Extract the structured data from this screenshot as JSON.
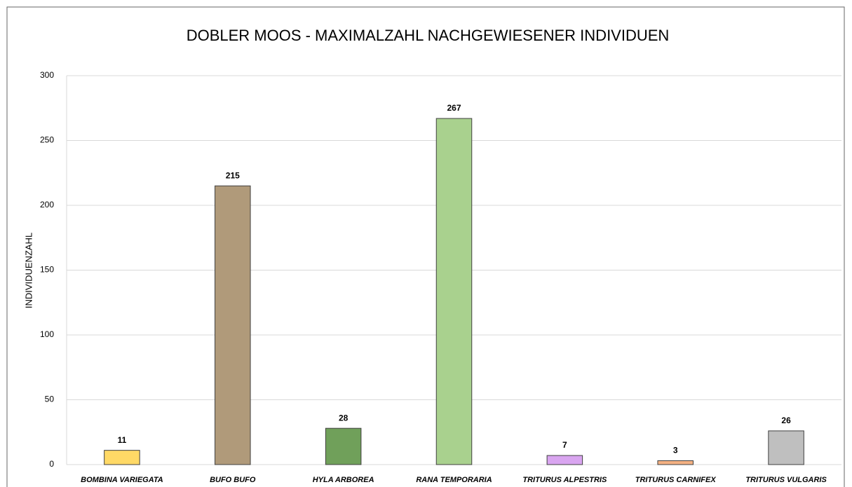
{
  "chart_data": {
    "type": "bar",
    "title": "DOBLER MOOS - MAXIMALZAHL NACHGEWIESENER INDIVIDUEN",
    "y_label": "INDIVIDUENZAHL",
    "categories": [
      "BOMBINA VARIEGATA",
      "BUFO BUFO",
      "HYLA ARBOREA",
      "RANA TEMPORARIA",
      "TRITURUS ALPESTRIS",
      "TRITURUS CARNIFEX",
      "TRITURUS VULGARIS"
    ],
    "values": [
      11,
      215,
      28,
      267,
      7,
      3,
      26
    ],
    "colors": [
      "#ffd966",
      "#b09a7a",
      "#70a05a",
      "#a9d18e",
      "#d9a5f0",
      "#f4b183",
      "#bfbfbf"
    ],
    "ylim": [
      0,
      300
    ],
    "yticks": [
      0,
      50,
      100,
      150,
      200,
      250,
      300
    ],
    "grid": true
  }
}
